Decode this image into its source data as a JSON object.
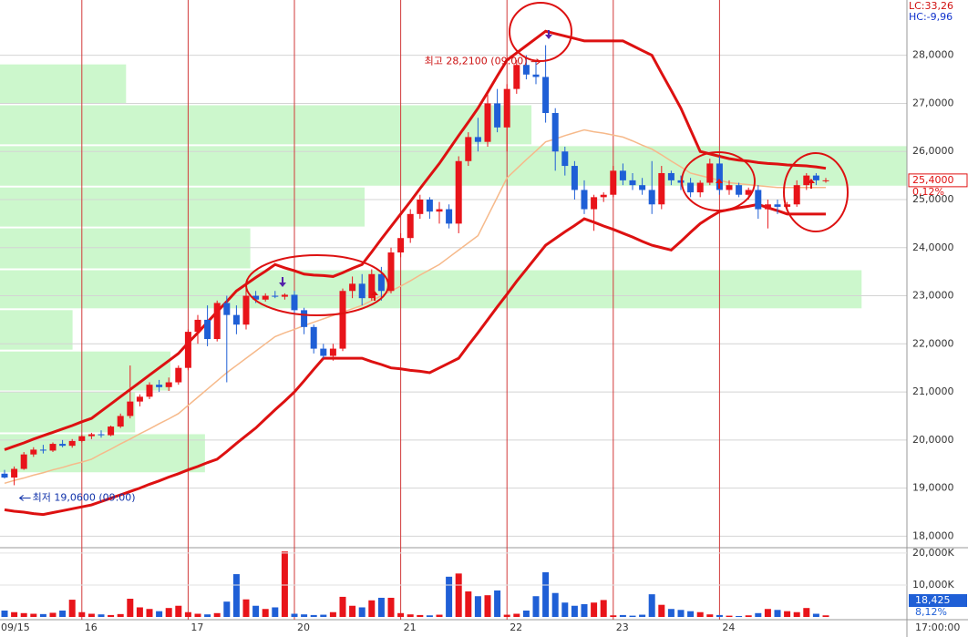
{
  "chart_data": [
    {
      "type": "candlestick",
      "categories": [
        "09/15",
        null,
        null,
        null,
        null,
        null,
        null,
        null,
        "16",
        null,
        null,
        null,
        null,
        null,
        null,
        null,
        null,
        null,
        null,
        "17",
        null,
        null,
        null,
        null,
        null,
        null,
        null,
        null,
        null,
        null,
        "20",
        null,
        null,
        null,
        null,
        null,
        null,
        null,
        null,
        null,
        null,
        "21",
        null,
        null,
        null,
        null,
        null,
        null,
        null,
        null,
        null,
        null,
        "22",
        null,
        null,
        null,
        null,
        null,
        null,
        null,
        null,
        null,
        null,
        "23",
        null,
        null,
        null,
        null,
        null,
        null,
        null,
        null,
        null,
        null,
        "24",
        null,
        null,
        null,
        null,
        null,
        null,
        null,
        null,
        null,
        null,
        null
      ],
      "open": [
        19.3,
        19.22,
        19.4,
        19.7,
        19.8,
        19.78,
        19.92,
        19.88,
        19.98,
        20.08,
        20.12,
        20.1,
        20.28,
        20.5,
        20.8,
        20.9,
        21.15,
        21.1,
        21.2,
        21.5,
        22.25,
        22.5,
        22.1,
        22.85,
        22.6,
        22.4,
        23.0,
        22.92,
        23.0,
        22.98,
        23.02,
        22.7,
        22.35,
        21.9,
        21.75,
        21.9,
        23.1,
        23.25,
        22.95,
        23.45,
        23.1,
        23.9,
        24.2,
        24.7,
        25.0,
        24.75,
        24.8,
        24.5,
        25.8,
        26.3,
        26.2,
        27.0,
        26.5,
        27.3,
        27.8,
        27.6,
        27.55,
        26.8,
        26.0,
        25.7,
        25.2,
        24.8,
        25.05,
        25.1,
        25.6,
        25.4,
        25.3,
        25.2,
        24.9,
        25.55,
        25.4,
        25.35,
        25.15,
        25.35,
        25.75,
        25.2,
        25.3,
        25.1,
        25.2,
        24.8,
        24.9,
        24.85,
        24.9,
        25.3,
        25.5,
        25.4
      ],
      "high": [
        19.38,
        19.45,
        19.75,
        19.85,
        19.9,
        19.95,
        20.0,
        20.02,
        20.1,
        20.15,
        20.2,
        20.3,
        20.55,
        21.55,
        20.95,
        21.2,
        21.25,
        21.3,
        21.55,
        22.3,
        22.6,
        22.8,
        22.9,
        23.0,
        22.8,
        23.3,
        23.1,
        23.05,
        23.1,
        23.05,
        23.1,
        22.75,
        22.4,
        22.0,
        22.0,
        23.15,
        23.4,
        23.45,
        23.55,
        23.6,
        24.0,
        24.3,
        24.8,
        25.1,
        25.05,
        24.95,
        24.9,
        25.9,
        26.4,
        26.7,
        27.2,
        27.3,
        27.4,
        27.9,
        28.0,
        27.9,
        28.21,
        26.9,
        26.1,
        25.8,
        25.4,
        25.1,
        25.15,
        25.7,
        25.75,
        25.55,
        25.45,
        25.8,
        25.7,
        25.6,
        25.5,
        25.45,
        25.4,
        25.85,
        25.9,
        25.4,
        25.35,
        25.25,
        25.3,
        25.0,
        25.0,
        24.95,
        25.4,
        25.55,
        25.55,
        25.45
      ],
      "low": [
        19.2,
        19.06,
        19.38,
        19.65,
        19.72,
        19.75,
        19.85,
        19.84,
        19.95,
        20.02,
        20.05,
        20.08,
        20.25,
        20.45,
        20.7,
        20.85,
        21.0,
        21.02,
        21.15,
        21.45,
        22.0,
        21.95,
        22.05,
        21.2,
        22.2,
        22.3,
        22.85,
        22.88,
        22.95,
        22.92,
        22.6,
        22.2,
        21.8,
        21.7,
        21.65,
        21.85,
        22.95,
        22.8,
        22.9,
        22.9,
        23.05,
        23.8,
        24.1,
        24.6,
        24.6,
        24.5,
        24.4,
        24.3,
        25.7,
        26.0,
        26.1,
        26.4,
        26.0,
        27.2,
        27.5,
        27.4,
        26.6,
        25.6,
        25.5,
        25.0,
        24.7,
        24.35,
        24.95,
        25.05,
        25.3,
        25.2,
        25.1,
        24.7,
        24.8,
        25.3,
        25.2,
        25.05,
        25.05,
        25.3,
        25.1,
        25.1,
        25.05,
        25.0,
        24.6,
        24.4,
        24.7,
        24.75,
        24.85,
        25.2,
        25.3,
        25.35
      ],
      "close": [
        19.22,
        19.4,
        19.7,
        19.8,
        19.78,
        19.92,
        19.88,
        19.98,
        20.08,
        20.12,
        20.1,
        20.28,
        20.5,
        20.8,
        20.9,
        21.15,
        21.1,
        21.2,
        21.5,
        22.25,
        22.5,
        22.1,
        22.85,
        22.6,
        22.4,
        23.0,
        22.92,
        23.0,
        22.98,
        23.02,
        22.7,
        22.35,
        21.9,
        21.75,
        21.9,
        23.1,
        23.25,
        22.95,
        23.45,
        23.1,
        23.9,
        24.2,
        24.7,
        25.0,
        24.75,
        24.8,
        24.5,
        25.8,
        26.3,
        26.2,
        27.0,
        26.5,
        27.3,
        27.8,
        27.6,
        27.55,
        26.8,
        26.0,
        25.7,
        25.2,
        24.8,
        25.05,
        25.1,
        25.6,
        25.4,
        25.3,
        25.2,
        24.9,
        25.55,
        25.4,
        25.35,
        25.15,
        25.35,
        25.75,
        25.2,
        25.3,
        25.1,
        25.2,
        24.8,
        24.9,
        24.85,
        24.9,
        25.3,
        25.5,
        25.4,
        25.4
      ],
      "up_color": "#e8141a",
      "down_color": "#1f5fd6",
      "bollinger": {
        "color": "#dd1111",
        "middle_color": "#f6b98a",
        "upper": [
          19.8,
          19.87,
          19.94,
          20.02,
          20.09,
          20.16,
          20.23,
          20.3,
          20.38,
          20.45,
          20.6,
          20.75,
          20.9,
          21.05,
          21.2,
          21.35,
          21.5,
          21.65,
          21.8,
          22.02,
          22.23,
          22.45,
          22.67,
          22.88,
          23.1,
          23.24,
          23.38,
          23.51,
          23.65,
          23.58,
          23.52,
          23.45,
          23.43,
          23.42,
          23.4,
          23.48,
          23.57,
          23.65,
          23.91,
          24.18,
          24.44,
          24.7,
          24.96,
          25.23,
          25.49,
          25.75,
          26.04,
          26.33,
          26.61,
          26.9,
          27.23,
          27.57,
          27.9,
          28.05,
          28.2,
          28.35,
          28.5,
          28.45,
          28.4,
          28.35,
          28.3,
          28.3,
          28.3,
          28.3,
          28.3,
          28.2,
          28.1,
          28.0,
          27.63,
          27.27,
          26.9,
          26.45,
          26.0,
          25.95,
          25.9,
          25.85,
          25.82,
          25.8,
          25.77,
          25.75,
          25.74,
          25.72,
          25.71,
          25.7,
          25.68,
          25.65
        ],
        "middle": [
          19.1,
          19.16,
          19.21,
          19.27,
          19.32,
          19.38,
          19.43,
          19.49,
          19.54,
          19.6,
          19.71,
          19.81,
          19.92,
          20.02,
          20.13,
          20.23,
          20.34,
          20.44,
          20.55,
          20.72,
          20.89,
          21.06,
          21.23,
          21.4,
          21.55,
          21.7,
          21.85,
          22.0,
          22.15,
          22.23,
          22.3,
          22.38,
          22.45,
          22.52,
          22.59,
          22.66,
          22.73,
          22.8,
          22.9,
          23.0,
          23.1,
          23.2,
          23.31,
          23.43,
          23.54,
          23.65,
          23.8,
          23.95,
          24.1,
          24.25,
          24.65,
          25.05,
          25.45,
          25.64,
          25.83,
          26.01,
          26.2,
          26.26,
          26.33,
          26.39,
          26.45,
          26.41,
          26.38,
          26.34,
          26.3,
          26.22,
          26.13,
          26.05,
          25.93,
          25.8,
          25.68,
          25.55,
          25.5,
          25.45,
          25.4,
          25.35,
          25.33,
          25.31,
          25.29,
          25.27,
          25.25,
          25.25,
          25.25,
          25.25,
          25.25,
          25.25
        ],
        "lower": [
          18.55,
          18.52,
          18.5,
          18.47,
          18.45,
          18.49,
          18.53,
          18.57,
          18.61,
          18.65,
          18.72,
          18.79,
          18.86,
          18.93,
          19.0,
          19.08,
          19.15,
          19.23,
          19.3,
          19.38,
          19.45,
          19.53,
          19.6,
          19.76,
          19.93,
          20.09,
          20.25,
          20.44,
          20.63,
          20.81,
          21.0,
          21.23,
          21.47,
          21.7,
          21.7,
          21.7,
          21.7,
          21.7,
          21.63,
          21.57,
          21.5,
          21.48,
          21.45,
          21.43,
          21.4,
          21.5,
          21.6,
          21.7,
          21.97,
          22.23,
          22.5,
          22.77,
          23.03,
          23.3,
          23.55,
          23.8,
          24.05,
          24.19,
          24.33,
          24.46,
          24.6,
          24.53,
          24.45,
          24.38,
          24.3,
          24.22,
          24.13,
          24.05,
          24.0,
          23.95,
          24.13,
          24.32,
          24.5,
          24.63,
          24.75,
          24.79,
          24.83,
          24.86,
          24.9,
          24.83,
          24.77,
          24.7,
          24.7,
          24.7,
          24.7,
          24.7
        ]
      },
      "volume_profile": {
        "color": "#ccf7cc",
        "xlim": [
          0,
          100
        ],
        "bins": [
          19.31,
          20.14,
          21.01,
          21.86,
          22.72,
          23.55,
          24.42,
          25.27,
          26.13,
          26.98,
          27.83
        ],
        "values": [
          22.6,
          14.9,
          18.8,
          8.0,
          95.0,
          27.6,
          40.2,
          100,
          58.6,
          13.9
        ]
      },
      "ylim": [
        17.78,
        29.15
      ],
      "yticks": [
        {
          "value": 18,
          "label": "18,0000"
        },
        {
          "value": 19,
          "label": "19,0000"
        },
        {
          "value": 20,
          "label": "20,0000"
        },
        {
          "value": 21,
          "label": "21,0000"
        },
        {
          "value": 22,
          "label": "22,0000"
        },
        {
          "value": 23,
          "label": "23,0000"
        },
        {
          "value": 24,
          "label": "24,0000"
        },
        {
          "value": 25,
          "label": "25,0000"
        },
        {
          "value": 26,
          "label": "26,0000"
        },
        {
          "value": 27,
          "label": "27,0000"
        },
        {
          "value": 28,
          "label": "28,0000"
        }
      ],
      "grid": true,
      "day_line_color": "#d23a3a",
      "annotations": [
        {
          "text": "최고 28,2100 (09:00)",
          "value": 28.21,
          "index": 56,
          "side": "left",
          "color": "#cc1111"
        },
        {
          "text": "최저 19,0600 (09:00)",
          "value": 19.06,
          "index": 1,
          "side": "right",
          "color": "#1133aa"
        }
      ],
      "last_price": {
        "value": 25.4,
        "label": "25,4000"
      },
      "last_change": "0,12%",
      "info_labels": [
        "LC:33,26",
        "HC:-9,96"
      ],
      "x_end_label": "17:00:00"
    },
    {
      "type": "bar",
      "values": [
        2000,
        1500,
        1200,
        1000,
        900,
        1300,
        2000,
        5400,
        1500,
        1000,
        800,
        600,
        900,
        5700,
        3000,
        2500,
        1800,
        2800,
        3500,
        1500,
        1000,
        800,
        1200,
        4800,
        13400,
        5500,
        3500,
        2500,
        3000,
        20500,
        1000,
        800,
        600,
        700,
        1500,
        6300,
        3500,
        3000,
        5200,
        6000,
        6000,
        1200,
        800,
        600,
        500,
        700,
        12600,
        13600,
        8000,
        6500,
        6800,
        8300,
        700,
        1000,
        2000,
        6500,
        14000,
        7500,
        4500,
        3500,
        4000,
        4500,
        5300,
        500,
        600,
        400,
        700,
        7100,
        3800,
        2500,
        2200,
        1800,
        1500,
        800,
        600,
        400,
        300,
        500,
        1200,
        2500,
        2200,
        1800,
        1500,
        2800,
        1000,
        500
      ],
      "ylim": [
        0,
        21400
      ],
      "yticks": [
        {
          "value": 10000,
          "label": "10,000K"
        },
        {
          "value": 20000,
          "label": "20,000K"
        }
      ],
      "last_volume": "18,425",
      "last_volume_change": "8,12%"
    }
  ]
}
